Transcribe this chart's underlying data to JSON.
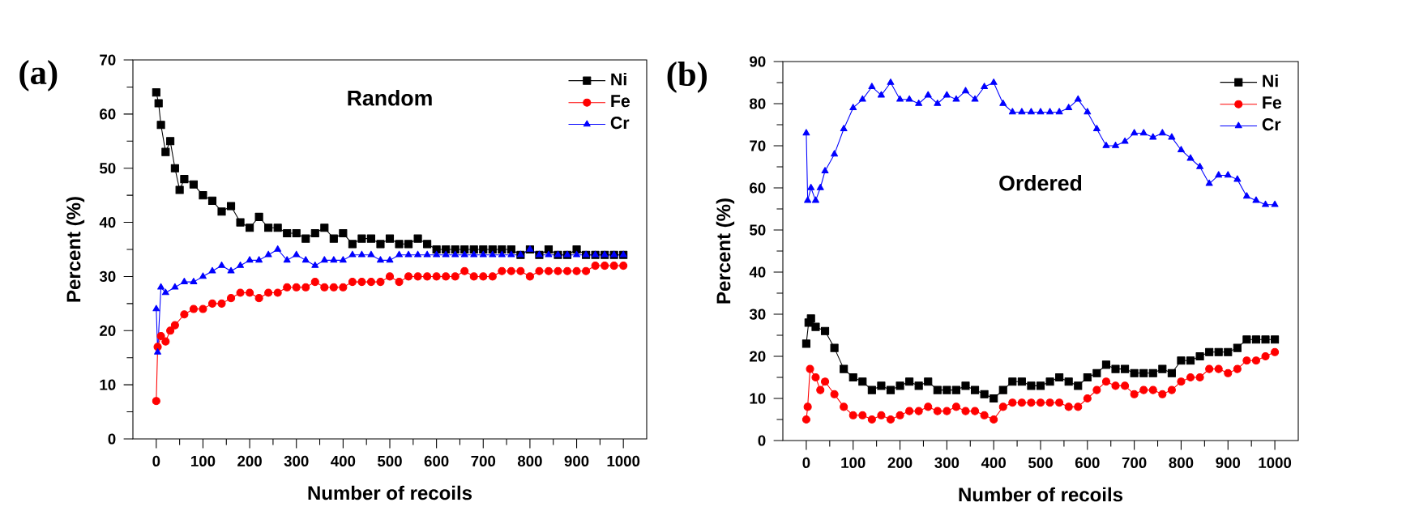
{
  "chart_data": [
    {
      "type": "line",
      "xlabel": "Number of recoils",
      "ylabel": "Percent (%)",
      "annotations": [
        "(a)",
        "Random"
      ],
      "xlim": [
        -50,
        1050
      ],
      "xticks": [
        0,
        100,
        200,
        300,
        400,
        500,
        600,
        700,
        800,
        900,
        1000
      ],
      "ylim": [
        0,
        70
      ],
      "yticks": [
        0,
        10,
        20,
        30,
        40,
        50,
        60,
        70
      ],
      "legend": "top right",
      "line_style": "solid",
      "series": [
        {
          "name": "Ni",
          "color": "#000000",
          "marker": "square",
          "x": [
            0,
            5,
            10,
            20,
            30,
            40,
            50,
            60,
            80,
            100,
            120,
            140,
            160,
            180,
            200,
            220,
            240,
            260,
            280,
            300,
            320,
            340,
            360,
            380,
            400,
            420,
            440,
            460,
            480,
            500,
            520,
            540,
            560,
            580,
            600,
            620,
            640,
            660,
            680,
            700,
            720,
            740,
            760,
            780,
            800,
            820,
            840,
            860,
            880,
            900,
            920,
            940,
            960,
            980,
            1000
          ],
          "values": [
            64,
            62,
            58,
            53,
            55,
            50,
            46,
            48,
            47,
            45,
            44,
            42,
            43,
            40,
            39,
            41,
            39,
            39,
            38,
            38,
            37,
            38,
            39,
            37,
            38,
            36,
            37,
            37,
            36,
            37,
            36,
            36,
            37,
            36,
            35,
            35,
            35,
            35,
            35,
            35,
            35,
            35,
            35,
            34,
            35,
            34,
            35,
            34,
            34,
            35,
            34,
            34,
            34,
            34,
            34
          ]
        },
        {
          "name": "Fe",
          "color": "#ff0000",
          "marker": "circle",
          "x": [
            0,
            3,
            10,
            20,
            30,
            40,
            60,
            80,
            100,
            120,
            140,
            160,
            180,
            200,
            220,
            240,
            260,
            280,
            300,
            320,
            340,
            360,
            380,
            400,
            420,
            440,
            460,
            480,
            500,
            520,
            540,
            560,
            580,
            600,
            620,
            640,
            660,
            680,
            700,
            720,
            740,
            760,
            780,
            800,
            820,
            840,
            860,
            880,
            900,
            920,
            940,
            960,
            980,
            1000
          ],
          "values": [
            7,
            17,
            19,
            18,
            20,
            21,
            23,
            24,
            24,
            25,
            25,
            26,
            27,
            27,
            26,
            27,
            27,
            28,
            28,
            28,
            29,
            28,
            28,
            28,
            29,
            29,
            29,
            29,
            30,
            29,
            30,
            30,
            30,
            30,
            30,
            30,
            31,
            30,
            30,
            30,
            31,
            31,
            31,
            30,
            31,
            31,
            31,
            31,
            31,
            31,
            32,
            32,
            32,
            32
          ]
        },
        {
          "name": "Cr",
          "color": "#0000ff",
          "marker": "triangle",
          "x": [
            0,
            3,
            10,
            20,
            40,
            60,
            80,
            100,
            120,
            140,
            160,
            180,
            200,
            220,
            240,
            260,
            280,
            300,
            320,
            340,
            360,
            380,
            400,
            420,
            440,
            460,
            480,
            500,
            520,
            540,
            560,
            580,
            600,
            620,
            640,
            660,
            680,
            700,
            720,
            740,
            760,
            780,
            800,
            820,
            840,
            860,
            880,
            900,
            920,
            940,
            960,
            980,
            1000
          ],
          "values": [
            24,
            16,
            28,
            27,
            28,
            29,
            29,
            30,
            31,
            32,
            31,
            32,
            33,
            33,
            34,
            35,
            33,
            34,
            33,
            32,
            33,
            33,
            33,
            34,
            34,
            34,
            33,
            33,
            34,
            34,
            34,
            34,
            34,
            34,
            34,
            34,
            34,
            34,
            34,
            34,
            34,
            34,
            35,
            34,
            34,
            34,
            34,
            34,
            34,
            34,
            34,
            34,
            34
          ]
        }
      ]
    },
    {
      "type": "line",
      "xlabel": "Number of recoils",
      "ylabel": "Percent (%)",
      "annotations": [
        "(b)",
        "Ordered"
      ],
      "xlim": [
        -50,
        1050
      ],
      "xticks": [
        0,
        100,
        200,
        300,
        400,
        500,
        600,
        700,
        800,
        900,
        1000
      ],
      "ylim": [
        0,
        90
      ],
      "yticks": [
        0,
        10,
        20,
        30,
        40,
        50,
        60,
        70,
        80,
        90
      ],
      "legend": "top right",
      "line_style": "solid",
      "series": [
        {
          "name": "Ni",
          "color": "#000000",
          "marker": "square",
          "x": [
            0,
            5,
            10,
            20,
            40,
            60,
            80,
            100,
            120,
            140,
            160,
            180,
            200,
            220,
            240,
            260,
            280,
            300,
            320,
            340,
            360,
            380,
            400,
            420,
            440,
            460,
            480,
            500,
            520,
            540,
            560,
            580,
            600,
            620,
            640,
            660,
            680,
            700,
            720,
            740,
            760,
            780,
            800,
            820,
            840,
            860,
            880,
            900,
            920,
            940,
            960,
            980,
            1000
          ],
          "values": [
            23,
            28,
            29,
            27,
            26,
            22,
            17,
            15,
            14,
            12,
            13,
            12,
            13,
            14,
            13,
            14,
            12,
            12,
            12,
            13,
            12,
            11,
            10,
            12,
            14,
            14,
            13,
            13,
            14,
            15,
            14,
            13,
            15,
            16,
            18,
            17,
            17,
            16,
            16,
            16,
            17,
            16,
            19,
            19,
            20,
            21,
            21,
            21,
            22,
            24,
            24,
            24,
            24
          ]
        },
        {
          "name": "Fe",
          "color": "#ff0000",
          "marker": "circle",
          "x": [
            0,
            3,
            8,
            20,
            30,
            40,
            60,
            80,
            100,
            120,
            140,
            160,
            180,
            200,
            220,
            240,
            260,
            280,
            300,
            320,
            340,
            360,
            380,
            400,
            420,
            440,
            460,
            480,
            500,
            520,
            540,
            560,
            580,
            600,
            620,
            640,
            660,
            680,
            700,
            720,
            740,
            760,
            780,
            800,
            820,
            840,
            860,
            880,
            900,
            920,
            940,
            960,
            980,
            1000
          ],
          "values": [
            5,
            8,
            17,
            15,
            12,
            14,
            11,
            8,
            6,
            6,
            5,
            6,
            5,
            6,
            7,
            7,
            8,
            7,
            7,
            8,
            7,
            7,
            6,
            5,
            8,
            9,
            9,
            9,
            9,
            9,
            9,
            8,
            8,
            10,
            12,
            14,
            13,
            13,
            11,
            12,
            12,
            11,
            12,
            14,
            15,
            15,
            17,
            17,
            16,
            17,
            19,
            19,
            20,
            21
          ]
        },
        {
          "name": "Cr",
          "color": "#0000ff",
          "marker": "triangle",
          "x": [
            0,
            3,
            10,
            20,
            30,
            40,
            60,
            80,
            100,
            120,
            140,
            160,
            180,
            200,
            220,
            240,
            260,
            280,
            300,
            320,
            340,
            360,
            380,
            400,
            420,
            440,
            460,
            480,
            500,
            520,
            540,
            560,
            580,
            600,
            620,
            640,
            660,
            680,
            700,
            720,
            740,
            760,
            780,
            800,
            820,
            840,
            860,
            880,
            900,
            920,
            940,
            960,
            980,
            1000
          ],
          "values": [
            73,
            57,
            60,
            57,
            60,
            64,
            68,
            74,
            79,
            81,
            84,
            82,
            85,
            81,
            81,
            80,
            82,
            80,
            82,
            81,
            83,
            81,
            84,
            85,
            80,
            78,
            78,
            78,
            78,
            78,
            78,
            79,
            81,
            78,
            74,
            70,
            70,
            71,
            73,
            73,
            72,
            73,
            72,
            69,
            67,
            65,
            61,
            63,
            63,
            62,
            58,
            57,
            56,
            56
          ]
        }
      ]
    }
  ]
}
